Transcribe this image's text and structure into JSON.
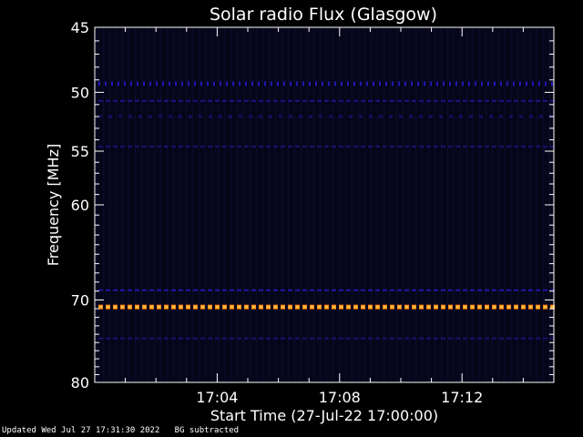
{
  "footer": {
    "updated": "Updated Wed Jul 27 17:31:30 2022",
    "note": "BG subtracted"
  },
  "colors": {
    "background": "#000000",
    "plot_background": "#06061a",
    "axis": "#ffffff",
    "blue_band": "#2a1fe0",
    "orange_band": "#ff8c1a"
  },
  "chart_data": {
    "type": "heatmap",
    "title": "Solar radio Flux (Glasgow)",
    "xlabel": "Start Time (27-Jul-22 17:00:00)",
    "ylabel": "Frequency [MHz]",
    "xlim_minutes": [
      0.0,
      15.0
    ],
    "x_tick_labels": [
      "17:04",
      "17:08",
      "17:12"
    ],
    "x_tick_minutes": [
      4,
      8,
      12
    ],
    "ylim": [
      45,
      80
    ],
    "y_scale": "log",
    "y_tick_labels": [
      "45",
      "50",
      "55",
      "60",
      "70",
      "80"
    ],
    "y_ticks": [
      45,
      50,
      55,
      60,
      70,
      80
    ],
    "bands": [
      {
        "freq": 49.3,
        "intensity": 0.75,
        "color": "blue",
        "pattern": "dotted"
      },
      {
        "freq": 50.7,
        "intensity": 0.55,
        "color": "blue",
        "pattern": "dashed"
      },
      {
        "freq": 52.0,
        "intensity": 0.35,
        "color": "blue",
        "pattern": "sparse"
      },
      {
        "freq": 54.6,
        "intensity": 0.45,
        "color": "blue",
        "pattern": "dashed"
      },
      {
        "freq": 68.9,
        "intensity": 0.7,
        "color": "blue",
        "pattern": "dashed"
      },
      {
        "freq": 70.8,
        "intensity": 1.0,
        "color": "orange",
        "pattern": "dashed"
      },
      {
        "freq": 74.5,
        "intensity": 0.45,
        "color": "blue",
        "pattern": "dashed"
      }
    ]
  }
}
